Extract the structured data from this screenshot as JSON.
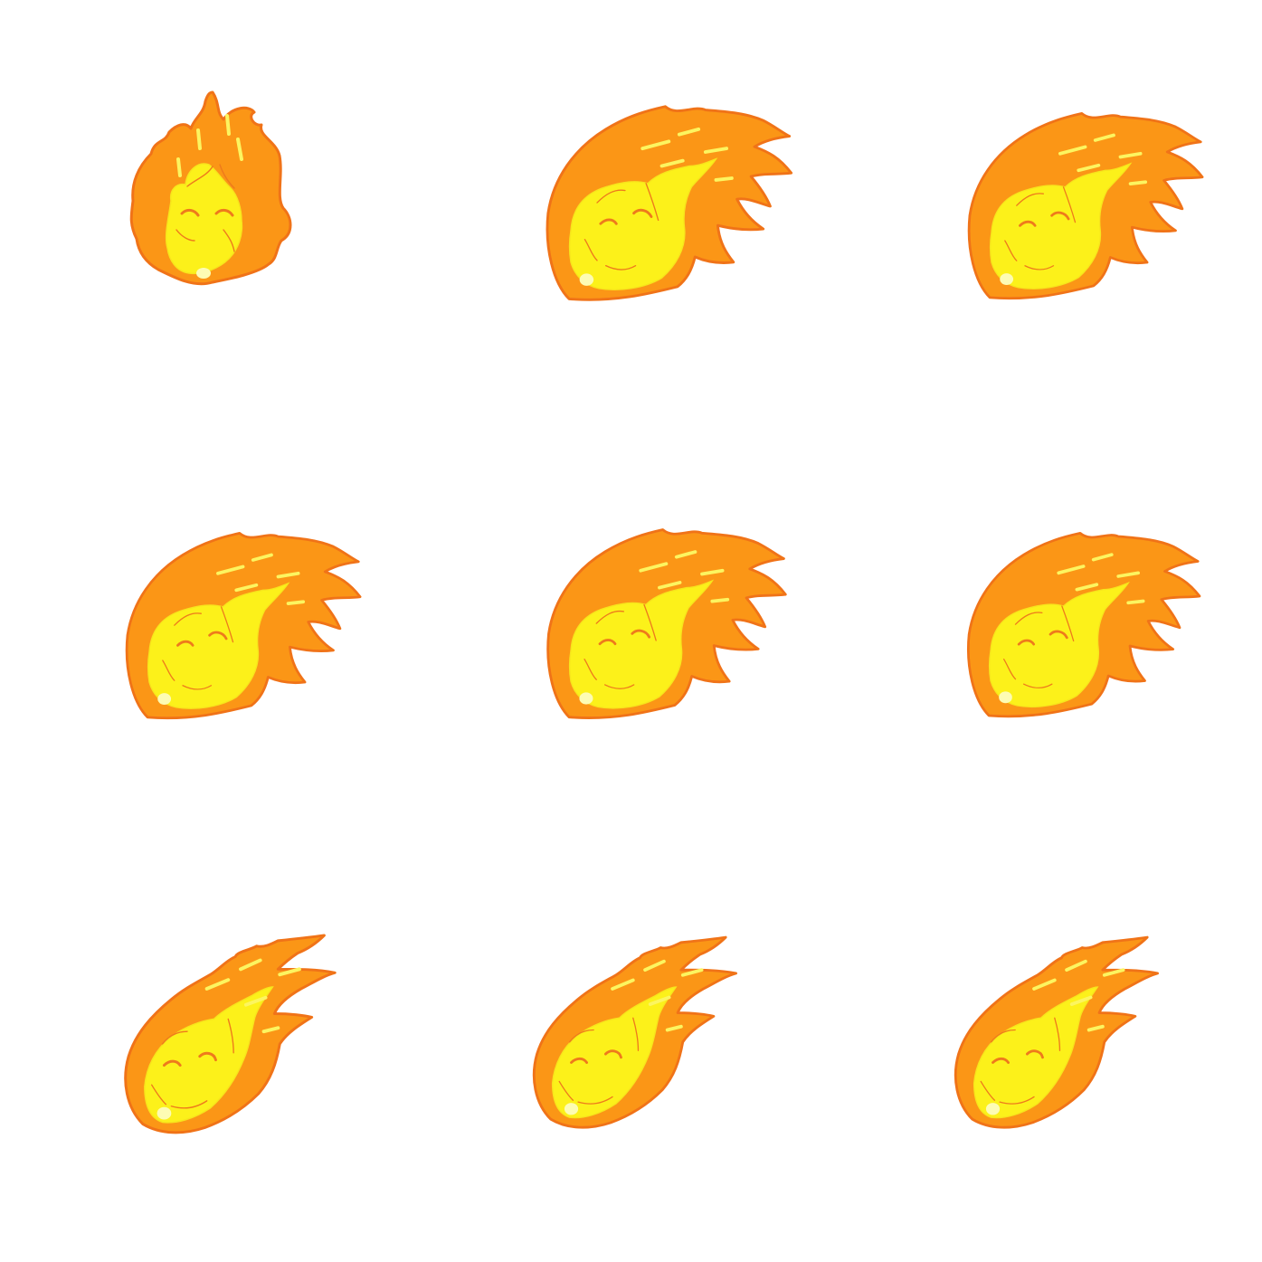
{
  "sprite_sheet": {
    "background": "#ffffff",
    "rows": 3,
    "columns": 3,
    "frame_count": 9,
    "colors": {
      "outline": "#f07318",
      "flame": "#fb9616",
      "face": "#fcf11a",
      "face_shade": "#f7e51c",
      "streak": "#fcf560",
      "highlight": "#fdfcb4",
      "detail": "#ee7a1c"
    },
    "frames": [
      {
        "id": 1,
        "icon": "fireball-upright-icon",
        "pose": "upright"
      },
      {
        "id": 2,
        "icon": "fireball-flying-icon",
        "pose": "flying"
      },
      {
        "id": 3,
        "icon": "fireball-flying-icon",
        "pose": "flying"
      },
      {
        "id": 4,
        "icon": "fireball-flying-icon",
        "pose": "flying"
      },
      {
        "id": 5,
        "icon": "fireball-flying-icon",
        "pose": "flying"
      },
      {
        "id": 6,
        "icon": "fireball-flying-icon",
        "pose": "flying"
      },
      {
        "id": 7,
        "icon": "fireball-diving-icon",
        "pose": "diving"
      },
      {
        "id": 8,
        "icon": "fireball-diving-icon",
        "pose": "diving"
      },
      {
        "id": 9,
        "icon": "fireball-diving-icon",
        "pose": "diving"
      }
    ]
  }
}
